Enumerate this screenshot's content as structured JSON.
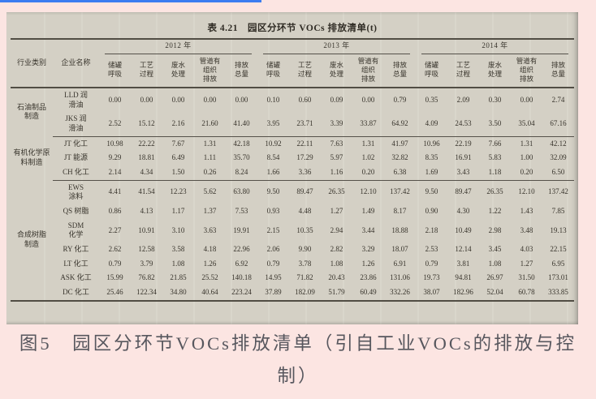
{
  "colors": {
    "page_background": "#fce5e2",
    "accent_blue_line": "#3b7cf0",
    "photo_background": "#d7d3c8",
    "table_ink": "#38342c",
    "caption_text": "#57575e"
  },
  "table": {
    "title": "表 4.21　园区分环节 VOCs 排放清单(t)",
    "col_headers": {
      "industry": "行业类别",
      "enterprise": "企业名称",
      "years": [
        "2012 年",
        "2013 年",
        "2014 年"
      ],
      "sub": [
        "储罐\n呼吸",
        "工艺\n过程",
        "废水\n处理",
        "管道有\n组织\n排放",
        "排放\n总量"
      ]
    },
    "groups": [
      {
        "industry": "石油制品\n制造",
        "rows": [
          {
            "enterprise": "LLD 润\n滑油",
            "values": [
              "0.00",
              "0.00",
              "0.00",
              "0.00",
              "0.00",
              "0.10",
              "0.60",
              "0.09",
              "0.00",
              "0.79",
              "0.35",
              "2.09",
              "0.30",
              "0.00",
              "2.74"
            ]
          },
          {
            "enterprise": "JKS 润\n滑油",
            "values": [
              "2.52",
              "15.12",
              "2.16",
              "21.60",
              "41.40",
              "3.95",
              "23.71",
              "3.39",
              "33.87",
              "64.92",
              "4.09",
              "24.53",
              "3.50",
              "35.04",
              "67.16"
            ]
          }
        ]
      },
      {
        "industry": "有机化学原\n料制造",
        "rows": [
          {
            "enterprise": "JT 化工",
            "values": [
              "10.98",
              "22.22",
              "7.67",
              "1.31",
              "42.18",
              "10.92",
              "22.11",
              "7.63",
              "1.31",
              "41.97",
              "10.96",
              "22.19",
              "7.66",
              "1.31",
              "42.12"
            ]
          },
          {
            "enterprise": "JT 能源",
            "values": [
              "9.29",
              "18.81",
              "6.49",
              "1.11",
              "35.70",
              "8.54",
              "17.29",
              "5.97",
              "1.02",
              "32.82",
              "8.35",
              "16.91",
              "5.83",
              "1.00",
              "32.09"
            ]
          },
          {
            "enterprise": "CH 化工",
            "values": [
              "2.14",
              "4.34",
              "1.50",
              "0.26",
              "8.24",
              "1.66",
              "3.36",
              "1.16",
              "0.20",
              "6.38",
              "1.69",
              "3.43",
              "1.18",
              "0.20",
              "6.50"
            ]
          }
        ]
      },
      {
        "industry": "合成树脂\n制造",
        "rows": [
          {
            "enterprise": "EWS\n涂料",
            "values": [
              "4.41",
              "41.54",
              "12.23",
              "5.62",
              "63.80",
              "9.50",
              "89.47",
              "26.35",
              "12.10",
              "137.42",
              "9.50",
              "89.47",
              "26.35",
              "12.10",
              "137.42"
            ]
          },
          {
            "enterprise": "QS 树脂",
            "values": [
              "0.86",
              "4.13",
              "1.17",
              "1.37",
              "7.53",
              "0.93",
              "4.48",
              "1.27",
              "1.49",
              "8.17",
              "0.90",
              "4.30",
              "1.22",
              "1.43",
              "7.85"
            ]
          },
          {
            "enterprise": "SDM\n化学",
            "values": [
              "2.27",
              "10.91",
              "3.10",
              "3.63",
              "19.91",
              "2.15",
              "10.35",
              "2.94",
              "3.44",
              "18.88",
              "2.18",
              "10.49",
              "2.98",
              "3.48",
              "19.13"
            ]
          },
          {
            "enterprise": "RY 化工",
            "values": [
              "2.62",
              "12.58",
              "3.58",
              "4.18",
              "22.96",
              "2.06",
              "9.90",
              "2.82",
              "3.29",
              "18.07",
              "2.53",
              "12.14",
              "3.45",
              "4.03",
              "22.15"
            ]
          },
          {
            "enterprise": "LT 化工",
            "values": [
              "0.79",
              "3.79",
              "1.08",
              "1.26",
              "6.92",
              "0.79",
              "3.78",
              "1.08",
              "1.26",
              "6.91",
              "0.79",
              "3.81",
              "1.08",
              "1.27",
              "6.95"
            ]
          },
          {
            "enterprise": "ASK 化工",
            "values": [
              "15.99",
              "76.82",
              "21.85",
              "25.52",
              "140.18",
              "14.95",
              "71.82",
              "20.43",
              "23.86",
              "131.06",
              "19.73",
              "94.81",
              "26.97",
              "31.50",
              "173.01"
            ]
          },
          {
            "enterprise": "DC 化工",
            "values": [
              "25.46",
              "122.34",
              "34.80",
              "40.64",
              "223.24",
              "37.89",
              "182.09",
              "51.79",
              "60.49",
              "332.26",
              "38.07",
              "182.96",
              "52.04",
              "60.78",
              "333.85"
            ]
          }
        ]
      }
    ]
  },
  "caption": {
    "text": "图5　园区分环节VOCs排放清单（引自工业VOCs的排放与控制）"
  }
}
